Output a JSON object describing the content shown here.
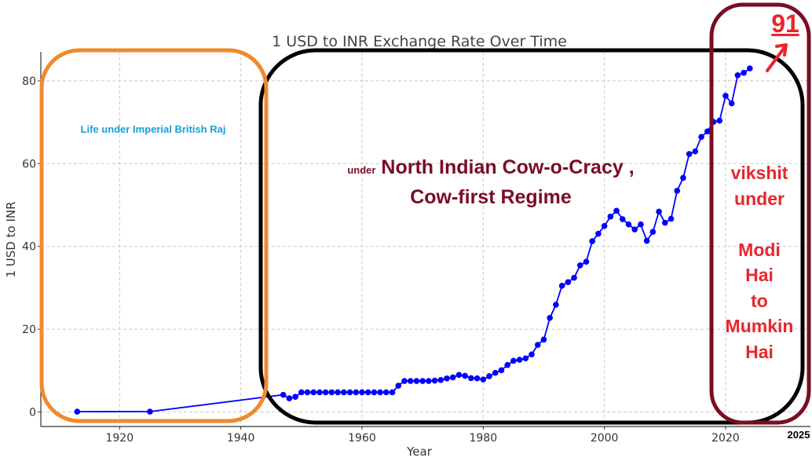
{
  "chart_data": {
    "type": "line",
    "title": "1 USD to INR Exchange Rate Over Time",
    "xlabel": "Year",
    "ylabel": "1 USD to INR",
    "xlim": [
      1907,
      2034
    ],
    "ylim": [
      -3.5,
      87
    ],
    "xticks": [
      1920,
      1940,
      1960,
      1980,
      2000,
      2020
    ],
    "yticks": [
      0,
      20,
      40,
      60,
      80
    ],
    "grid": true,
    "line_color": "#0000ff",
    "series": [
      {
        "x": [
          1913,
          1925,
          1947,
          1948,
          1949,
          1950,
          1951,
          1952,
          1953,
          1954,
          1955,
          1956,
          1957,
          1958,
          1959,
          1960,
          1961,
          1962,
          1963,
          1964,
          1965,
          1966,
          1967,
          1968,
          1969,
          1970,
          1971,
          1972,
          1973,
          1974,
          1975,
          1976,
          1977,
          1978,
          1979,
          1980,
          1981,
          1982,
          1983,
          1984,
          1985,
          1986,
          1987,
          1988,
          1989,
          1990,
          1991,
          1992,
          1993,
          1994,
          1995,
          1996,
          1997,
          1998,
          1999,
          2000,
          2001,
          2002,
          2003,
          2004,
          2005,
          2006,
          2007,
          2008,
          2009,
          2010,
          2011,
          2012,
          2013,
          2014,
          2015,
          2016,
          2017,
          2018,
          2019,
          2020,
          2021,
          2022,
          2023,
          2024
        ],
        "y": [
          0.09,
          0.1,
          4.16,
          3.31,
          3.67,
          4.76,
          4.76,
          4.76,
          4.76,
          4.76,
          4.76,
          4.76,
          4.76,
          4.76,
          4.76,
          4.76,
          4.76,
          4.76,
          4.76,
          4.76,
          4.76,
          6.36,
          7.5,
          7.5,
          7.5,
          7.5,
          7.5,
          7.59,
          7.74,
          8.1,
          8.38,
          8.96,
          8.74,
          8.19,
          8.13,
          7.86,
          8.66,
          9.46,
          10.1,
          11.36,
          12.37,
          12.61,
          12.96,
          13.92,
          16.23,
          17.5,
          22.74,
          25.92,
          30.49,
          31.37,
          32.43,
          35.43,
          36.31,
          41.26,
          43.06,
          44.94,
          47.19,
          48.61,
          46.58,
          45.32,
          44.1,
          45.31,
          41.35,
          43.51,
          48.41,
          45.73,
          46.67,
          53.44,
          56.57,
          62.33,
          62.97,
          66.46,
          67.79,
          70.09,
          70.39,
          76.38,
          74.57,
          81.35,
          81.94,
          83.0
        ]
      }
    ]
  },
  "annotations": {
    "british_raj": "Life under Imperial British Raj",
    "regime_small": "under",
    "regime_main_1": "North Indian Cow-o-Cracy ,",
    "regime_main_2": "Cow-first Regime",
    "vikshit_1": "vikshit",
    "vikshit_2": "under",
    "vikshit_3": "Modi",
    "vikshit_4": "Hai",
    "vikshit_5": "to",
    "vikshit_6": "Mumkin",
    "vikshit_7": "Hai",
    "value_91": "91",
    "year_2025": "2025",
    "colors": {
      "orange_box": "#f08a2c",
      "black_box": "#000000",
      "maroon_box": "#7a0d24",
      "red_text": "#e8262e",
      "blue_text": "#1aa0d8"
    }
  }
}
